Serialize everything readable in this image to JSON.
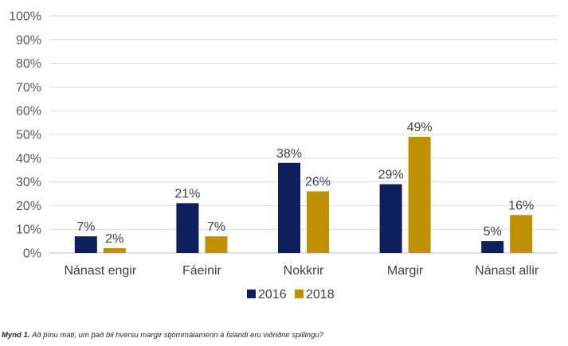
{
  "chart_data": {
    "type": "bar",
    "categories": [
      "Nánast engir",
      "Fáeinir",
      "Nokkrir",
      "Margir",
      "Nánast allir"
    ],
    "series": [
      {
        "name": "2016",
        "values": [
          7,
          21,
          38,
          29,
          5
        ],
        "color": "#0D1F5C"
      },
      {
        "name": "2018",
        "values": [
          2,
          7,
          26,
          49,
          16
        ],
        "color": "#BF9000"
      }
    ],
    "y_ticks": [
      "0%",
      "10%",
      "20%",
      "30%",
      "40%",
      "50%",
      "60%",
      "70%",
      "80%",
      "90%",
      "100%"
    ],
    "data_labels": [
      [
        "7%",
        "21%",
        "38%",
        "29%",
        "5%"
      ],
      [
        "2%",
        "7%",
        "26%",
        "49%",
        "16%"
      ]
    ],
    "ylim": [
      0,
      100
    ],
    "grid": true,
    "legend_position": "bottom"
  },
  "caption": {
    "lead": "Mynd 1.",
    "text": "Að þínu mati, um það bil hversu margir stjórnmálamenn á Íslandi eru viðriðnir spillingu?"
  }
}
